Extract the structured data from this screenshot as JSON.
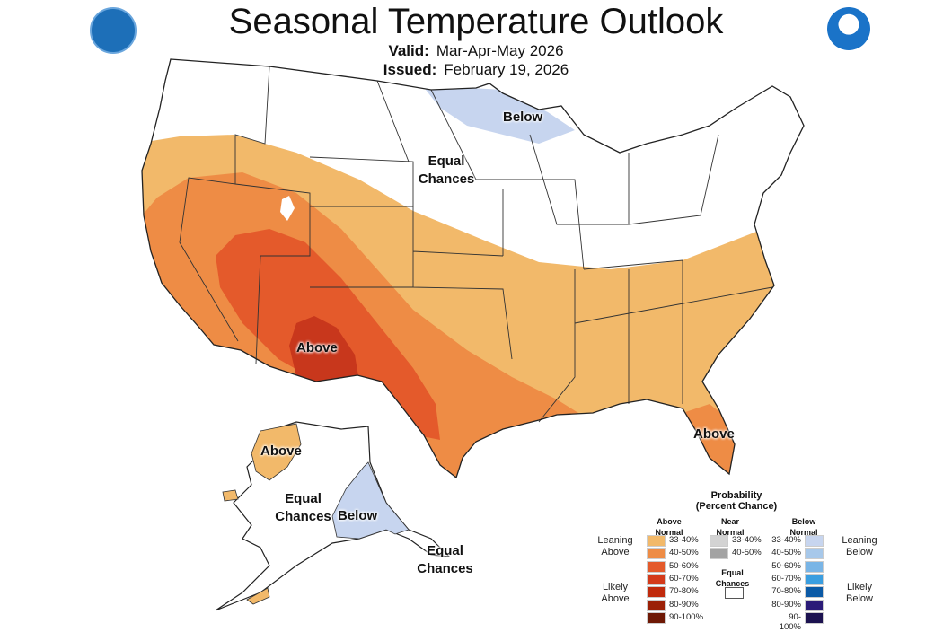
{
  "title": "Seasonal Temperature Outlook",
  "valid_label": "Valid:",
  "valid_value": "Mar-Apr-May 2026",
  "issued_label": "Issued:",
  "issued_value": "February 19, 2026",
  "logos": {
    "left": "Department of Commerce seal",
    "right": "NOAA"
  },
  "map_labels": {
    "conus_below": "Below",
    "conus_equal": "Equal Chances",
    "conus_above_sw": "Above",
    "conus_above_fl": "Above",
    "ak_above": "Above",
    "ak_equal": "Equal Chances",
    "ak_below": "Below",
    "ak_equal_se": "Equal Chances"
  },
  "legend": {
    "title": "Probability",
    "subtitle": "(Percent Chance)",
    "above_header": "Above Normal",
    "near_header": "Near Normal",
    "below_header": "Below Normal",
    "leaning_above": "Leaning Above",
    "likely_above": "Likely Above",
    "leaning_below": "Leaning Below",
    "likely_below": "Likely Below",
    "equal_chances": "Equal Chances",
    "above": [
      {
        "range": "33-40%",
        "color": "#f2b96a"
      },
      {
        "range": "40-50%",
        "color": "#ee8c45"
      },
      {
        "range": "50-60%",
        "color": "#e45a2b"
      },
      {
        "range": "60-70%",
        "color": "#d43a1a"
      },
      {
        "range": "70-80%",
        "color": "#c02a0c"
      },
      {
        "range": "80-90%",
        "color": "#9b2006"
      },
      {
        "range": "90-100%",
        "color": "#6e1805"
      }
    ],
    "near": [
      {
        "range": "33-40%",
        "color": "#d3d3d3"
      },
      {
        "range": "40-50%",
        "color": "#a3a3a3"
      }
    ],
    "below": [
      {
        "range": "33-40%",
        "color": "#c7d5ef"
      },
      {
        "range": "40-50%",
        "color": "#a7c8ea"
      },
      {
        "range": "50-60%",
        "color": "#79b5e6"
      },
      {
        "range": "60-70%",
        "color": "#3a9ee0"
      },
      {
        "range": "70-80%",
        "color": "#0b5aa6"
      },
      {
        "range": "80-90%",
        "color": "#2b1b78"
      },
      {
        "range": "90-100%",
        "color": "#1c1250"
      }
    ]
  }
}
